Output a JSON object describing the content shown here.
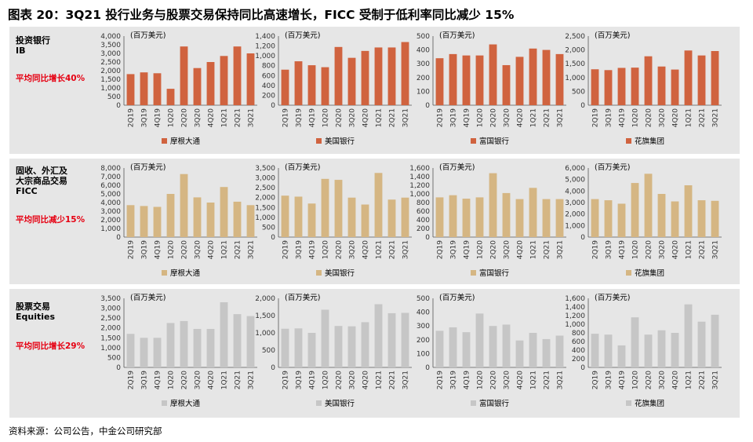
{
  "title": "图表 20：3Q21 投行业务与股票交易保持同比高速增长，FICC 受制于低利率同比减少 15%",
  "source": "资料来源：公司公告，中金公司研究部",
  "rows": [
    {
      "label": "投资银行\nIB",
      "growth": "平均同比增长40%",
      "color": "#d0633f"
    },
    {
      "label": "固收、外汇及\n大宗商品交易\nFICC",
      "growth": "平均同比减少15%",
      "color": "#d5b683"
    },
    {
      "label": "股票交易\nEquities",
      "growth": "平均同比增长29%",
      "color": "#c6c6c6"
    }
  ],
  "chart_data": [
    {
      "type": "bar",
      "row": 0,
      "col": 0,
      "unit": "(百万美元)",
      "legend": "摩根大通",
      "categories": [
        "2Q19",
        "3Q19",
        "4Q19",
        "1Q20",
        "2Q20",
        "3Q20",
        "4Q20",
        "1Q21",
        "2Q21",
        "3Q21"
      ],
      "values": [
        1800,
        1900,
        1850,
        950,
        3400,
        2150,
        2500,
        2850,
        3400,
        3000
      ],
      "ylim": [
        0,
        4000
      ],
      "ticks": [
        0,
        500,
        1000,
        1500,
        2000,
        2500,
        3000,
        3500,
        4000
      ]
    },
    {
      "type": "bar",
      "row": 0,
      "col": 1,
      "unit": "(百万美元)",
      "legend": "美国银行",
      "categories": [
        "2Q19",
        "3Q19",
        "4Q19",
        "1Q20",
        "2Q20",
        "3Q20",
        "4Q20",
        "1Q21",
        "2Q21",
        "3Q21"
      ],
      "values": [
        720,
        890,
        810,
        770,
        1180,
        960,
        1100,
        1170,
        1170,
        1280
      ],
      "ylim": [
        0,
        1400
      ],
      "ticks": [
        0,
        200,
        400,
        600,
        800,
        1000,
        1200,
        1400
      ]
    },
    {
      "type": "bar",
      "row": 0,
      "col": 2,
      "unit": "(百万美元)",
      "legend": "富国银行",
      "categories": [
        "2Q19",
        "3Q19",
        "4Q19",
        "1Q20",
        "2Q20",
        "3Q20",
        "4Q20",
        "1Q21",
        "2Q21",
        "3Q21"
      ],
      "values": [
        340,
        370,
        360,
        360,
        440,
        290,
        350,
        410,
        400,
        370
      ],
      "ylim": [
        0,
        500
      ],
      "ticks": [
        0,
        100,
        200,
        300,
        400,
        500
      ]
    },
    {
      "type": "bar",
      "row": 0,
      "col": 3,
      "unit": "(百万美元)",
      "legend": "花旗集团",
      "categories": [
        "2Q19",
        "3Q19",
        "4Q19",
        "1Q20",
        "2Q20",
        "3Q20",
        "4Q20",
        "1Q21",
        "2Q21",
        "3Q21"
      ],
      "values": [
        1300,
        1270,
        1350,
        1360,
        1770,
        1400,
        1290,
        1980,
        1800,
        1960
      ],
      "ylim": [
        0,
        2500
      ],
      "ticks": [
        0,
        500,
        1000,
        1500,
        2000,
        2500
      ]
    },
    {
      "type": "bar",
      "row": 1,
      "col": 0,
      "unit": "(百万美元)",
      "legend": "摩根大通",
      "categories": [
        "2Q19",
        "3Q19",
        "4Q19",
        "1Q20",
        "2Q20",
        "3Q20",
        "4Q20",
        "1Q21",
        "2Q21",
        "3Q21"
      ],
      "values": [
        3700,
        3600,
        3500,
        5000,
        7300,
        4600,
        4000,
        5800,
        4100,
        3700
      ],
      "ylim": [
        0,
        8000
      ],
      "ticks": [
        0,
        1000,
        2000,
        3000,
        4000,
        5000,
        6000,
        7000,
        8000
      ]
    },
    {
      "type": "bar",
      "row": 1,
      "col": 1,
      "unit": "(百万美元)",
      "legend": "美国银行",
      "categories": [
        "2Q19",
        "3Q19",
        "4Q19",
        "1Q20",
        "2Q20",
        "3Q20",
        "4Q20",
        "1Q21",
        "2Q21",
        "3Q21"
      ],
      "values": [
        2100,
        2050,
        1700,
        2950,
        2900,
        2000,
        1650,
        3250,
        1900,
        2000
      ],
      "ylim": [
        0,
        3500
      ],
      "ticks": [
        0,
        500,
        1000,
        1500,
        2000,
        2500,
        3000,
        3500
      ]
    },
    {
      "type": "bar",
      "row": 1,
      "col": 2,
      "unit": "(百万美元)",
      "legend": "富国银行",
      "categories": [
        "2Q19",
        "3Q19",
        "4Q19",
        "1Q20",
        "2Q20",
        "3Q20",
        "4Q20",
        "1Q21",
        "2Q21",
        "3Q21"
      ],
      "values": [
        920,
        970,
        890,
        920,
        1480,
        1020,
        880,
        1140,
        880,
        880
      ],
      "ylim": [
        0,
        1600
      ],
      "ticks": [
        0,
        200,
        400,
        600,
        800,
        1000,
        1200,
        1400,
        1600
      ]
    },
    {
      "type": "bar",
      "row": 1,
      "col": 3,
      "unit": "(百万美元)",
      "legend": "花旗集团",
      "categories": [
        "2Q19",
        "3Q19",
        "4Q19",
        "1Q20",
        "2Q20",
        "3Q20",
        "4Q20",
        "1Q21",
        "2Q21",
        "3Q21"
      ],
      "values": [
        3300,
        3200,
        2900,
        4700,
        5500,
        3750,
        3100,
        4500,
        3200,
        3150
      ],
      "ylim": [
        0,
        6000
      ],
      "ticks": [
        0,
        1000,
        2000,
        3000,
        4000,
        5000,
        6000
      ]
    },
    {
      "type": "bar",
      "row": 2,
      "col": 0,
      "unit": "(百万美元)",
      "legend": "摩根大通",
      "categories": [
        "2Q19",
        "3Q19",
        "4Q19",
        "1Q20",
        "2Q20",
        "3Q20",
        "4Q20",
        "1Q21",
        "2Q21",
        "3Q21"
      ],
      "values": [
        1700,
        1500,
        1500,
        2250,
        2350,
        1950,
        1950,
        3300,
        2700,
        2600
      ],
      "ylim": [
        0,
        3500
      ],
      "ticks": [
        0,
        500,
        1000,
        1500,
        2000,
        2500,
        3000,
        3500
      ]
    },
    {
      "type": "bar",
      "row": 2,
      "col": 1,
      "unit": "(百万美元)",
      "legend": "美国银行",
      "categories": [
        "2Q19",
        "3Q19",
        "4Q19",
        "1Q20",
        "2Q20",
        "3Q20",
        "4Q20",
        "1Q21",
        "2Q21",
        "3Q21"
      ],
      "values": [
        1120,
        1130,
        1000,
        1670,
        1200,
        1190,
        1310,
        1830,
        1570,
        1580
      ],
      "ylim": [
        0,
        2000
      ],
      "ticks": [
        0,
        500,
        1000,
        1500,
        2000
      ]
    },
    {
      "type": "bar",
      "row": 2,
      "col": 2,
      "unit": "(百万美元)",
      "legend": "富国银行",
      "categories": [
        "2Q19",
        "3Q19",
        "4Q19",
        "1Q20",
        "2Q20",
        "3Q20",
        "4Q20",
        "1Q21",
        "2Q21",
        "3Q21"
      ],
      "values": [
        265,
        290,
        255,
        390,
        300,
        310,
        195,
        250,
        205,
        230
      ],
      "ylim": [
        0,
        500
      ],
      "ticks": [
        0,
        100,
        200,
        300,
        400,
        500
      ]
    },
    {
      "type": "bar",
      "row": 2,
      "col": 3,
      "unit": "(百万美元)",
      "legend": "花旗集团",
      "categories": [
        "2Q19",
        "3Q19",
        "4Q19",
        "1Q20",
        "2Q20",
        "3Q20",
        "4Q20",
        "1Q21",
        "2Q21",
        "3Q21"
      ],
      "values": [
        780,
        760,
        510,
        1160,
        760,
        860,
        800,
        1460,
        1060,
        1220
      ],
      "ylim": [
        0,
        1600
      ],
      "ticks": [
        0,
        200,
        400,
        600,
        800,
        1000,
        1200,
        1400,
        1600
      ]
    }
  ]
}
